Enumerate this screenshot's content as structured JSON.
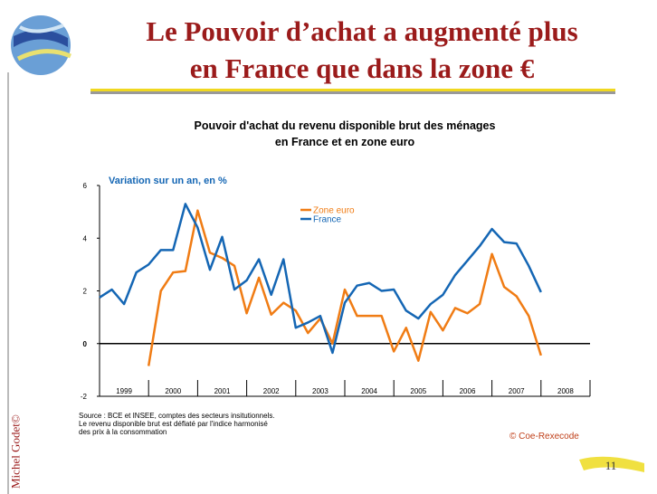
{
  "slide": {
    "title_lines": [
      "Le Pouvoir d’achat a augmenté plus",
      "en France que dans la zone €"
    ],
    "author": "Michel Godet©",
    "page": "11"
  },
  "chart_data": {
    "type": "line",
    "title_lines": [
      "Pouvoir d'achat du revenu disponible brut des ménages",
      "en France et en zone euro"
    ],
    "y_axis_label": "Variation sur un an, en %",
    "source_lines": [
      "Source : BCE et INSEE, comptes des secteurs insitutionnels.",
      "Le revenu disponible brut est déflaté par l'indice harmonisé",
      "des prix à la consommation"
    ],
    "credit": "© Coe-Rexecode",
    "year_labels": [
      "1999",
      "2000",
      "2001",
      "2002",
      "2003",
      "2004",
      "2005",
      "2006",
      "2007",
      "2008"
    ],
    "xlim": [
      1999,
      2009
    ],
    "xticks": [
      1999,
      2000,
      2001,
      2002,
      2003,
      2004,
      2005,
      2006,
      2007,
      2008,
      2009
    ],
    "ylim": [
      -2,
      6
    ],
    "yticks": [
      -2,
      0,
      2,
      4,
      6
    ],
    "legend": "top-center",
    "x": [
      1999,
      1999.25,
      1999.5,
      1999.75,
      2000,
      2000.25,
      2000.5,
      2000.75,
      2001,
      2001.25,
      2001.5,
      2001.75,
      2002,
      2002.25,
      2002.5,
      2002.75,
      2003,
      2003.25,
      2003.5,
      2003.75,
      2004,
      2004.25,
      2004.5,
      2004.75,
      2005,
      2005.25,
      2005.5,
      2005.75,
      2006,
      2006.25,
      2006.5,
      2006.75,
      2007,
      2007.25,
      2007.5,
      2007.75,
      2008
    ],
    "series": [
      {
        "name": "Zone euro",
        "color": "#f07c14",
        "values": [
          null,
          null,
          null,
          null,
          -0.85,
          2.0,
          2.7,
          2.75,
          5.05,
          3.45,
          3.25,
          2.95,
          1.15,
          2.5,
          1.1,
          1.55,
          1.25,
          0.4,
          0.95,
          0.0,
          2.05,
          1.05,
          1.05,
          1.05,
          -0.3,
          0.6,
          -0.65,
          1.2,
          0.5,
          1.35,
          1.15,
          1.5,
          3.4,
          2.15,
          1.8,
          1.05,
          -0.45
        ]
      },
      {
        "name": "France",
        "color": "#1466b4",
        "values": [
          1.75,
          2.05,
          1.5,
          2.7,
          3.0,
          3.55,
          3.55,
          5.3,
          4.4,
          2.8,
          4.05,
          2.05,
          2.4,
          3.2,
          1.85,
          3.2,
          0.6,
          0.8,
          1.05,
          -0.35,
          1.55,
          2.2,
          2.3,
          2.0,
          2.05,
          1.25,
          0.95,
          1.5,
          1.85,
          2.6,
          3.15,
          3.7,
          4.35,
          3.85,
          3.8,
          2.95,
          1.95
        ]
      }
    ]
  }
}
